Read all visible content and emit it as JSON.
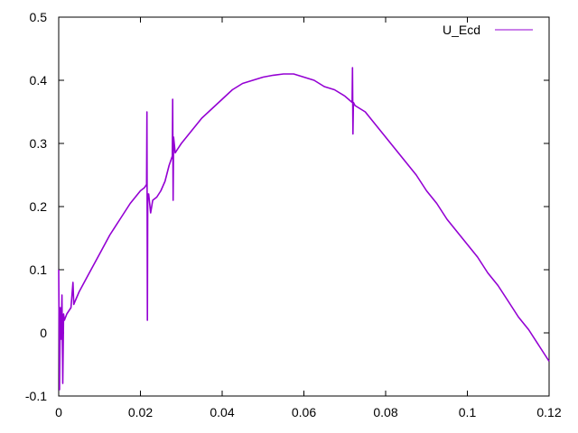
{
  "chart_data": {
    "type": "line",
    "title": "",
    "xlabel": "",
    "ylabel": "",
    "xlim": [
      0,
      0.12
    ],
    "ylim": [
      -0.1,
      0.5
    ],
    "grid": false,
    "legend_placement": "top-right",
    "x_ticks": [
      "0",
      "0.02",
      "0.04",
      "0.06",
      "0.08",
      "0.1",
      "0.12"
    ],
    "x_tick_values": [
      0,
      0.02,
      0.04,
      0.06,
      0.08,
      0.1,
      0.12
    ],
    "y_ticks": [
      "-0.1",
      "0",
      "0.1",
      "0.2",
      "0.3",
      "0.4",
      "0.5"
    ],
    "y_tick_values": [
      -0.1,
      0,
      0.1,
      0.2,
      0.3,
      0.4,
      0.5
    ],
    "series": [
      {
        "name": "U_Ecd",
        "color": "#9400d3",
        "x": [
          0,
          0.0002,
          0.0004,
          0.0006,
          0.0008,
          0.001,
          0.0012,
          0.0014,
          0.002,
          0.003,
          0.0035,
          0.0037,
          0.004,
          0.005,
          0.0075,
          0.01,
          0.0125,
          0.015,
          0.0175,
          0.02,
          0.021,
          0.0215,
          0.0216,
          0.0217,
          0.0218,
          0.022,
          0.0225,
          0.023,
          0.024,
          0.025,
          0.026,
          0.027,
          0.0278,
          0.0279,
          0.028,
          0.0281,
          0.0285,
          0.029,
          0.03,
          0.0325,
          0.035,
          0.0375,
          0.04,
          0.0425,
          0.045,
          0.0475,
          0.05,
          0.0525,
          0.055,
          0.0575,
          0.06,
          0.0625,
          0.065,
          0.0675,
          0.07,
          0.0718,
          0.0719,
          0.072,
          0.0721,
          0.0725,
          0.075,
          0.0775,
          0.08,
          0.0825,
          0.085,
          0.0875,
          0.09,
          0.0925,
          0.095,
          0.0975,
          0.1,
          0.1025,
          0.105,
          0.1075,
          0.11,
          0.1125,
          0.115,
          0.1175,
          0.12
        ],
        "y": [
          0.1,
          -0.09,
          0.04,
          -0.01,
          0.06,
          -0.08,
          0.03,
          0.02,
          0.03,
          0.04,
          0.08,
          0.045,
          0.05,
          0.065,
          0.095,
          0.125,
          0.155,
          0.18,
          0.205,
          0.225,
          0.23,
          0.235,
          0.35,
          0.02,
          0.22,
          0.22,
          0.19,
          0.21,
          0.215,
          0.225,
          0.24,
          0.265,
          0.28,
          0.37,
          0.21,
          0.31,
          0.285,
          0.29,
          0.3,
          0.32,
          0.34,
          0.355,
          0.37,
          0.385,
          0.395,
          0.4,
          0.405,
          0.408,
          0.41,
          0.41,
          0.405,
          0.4,
          0.39,
          0.385,
          0.375,
          0.365,
          0.42,
          0.315,
          0.365,
          0.36,
          0.35,
          0.33,
          0.31,
          0.29,
          0.27,
          0.25,
          0.225,
          0.205,
          0.18,
          0.16,
          0.14,
          0.12,
          0.095,
          0.075,
          0.05,
          0.025,
          0.005,
          -0.02,
          -0.045
        ]
      }
    ]
  }
}
